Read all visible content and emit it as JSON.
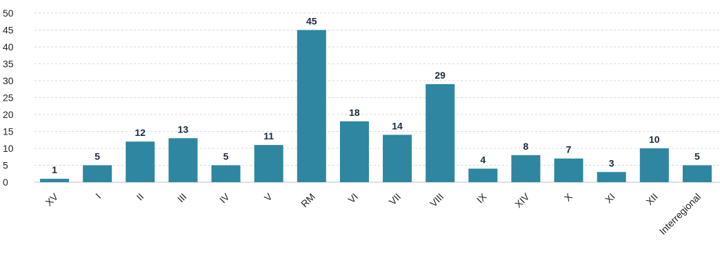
{
  "chart_data": {
    "type": "bar",
    "categories": [
      "XV",
      "I",
      "II",
      "III",
      "IV",
      "V",
      "RM",
      "VI",
      "VII",
      "VIII",
      "IX",
      "XIV",
      "X",
      "XI",
      "XII",
      "Interregional"
    ],
    "values": [
      1,
      5,
      12,
      13,
      5,
      11,
      45,
      18,
      14,
      29,
      4,
      8,
      7,
      3,
      10,
      5
    ],
    "ylim": [
      0,
      50
    ],
    "yticks": [
      0,
      5,
      10,
      15,
      20,
      25,
      30,
      35,
      40,
      45,
      50
    ],
    "grid": true,
    "legend": "none",
    "bar_color": "#2e86a0",
    "data_labels": true,
    "title": "",
    "xlabel": "",
    "ylabel": ""
  }
}
